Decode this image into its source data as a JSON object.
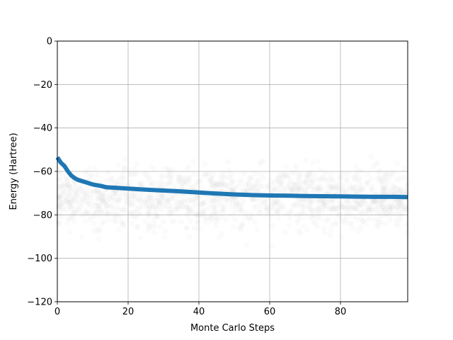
{
  "chart_data": {
    "type": "line",
    "title": "",
    "xlabel": "Monte Carlo Steps",
    "ylabel": "Energy (Hartree)",
    "xlim": [
      0,
      99
    ],
    "ylim": [
      -120,
      0
    ],
    "grid": true,
    "x_ticks": [
      0,
      20,
      40,
      60,
      80
    ],
    "x_tick_labels": [
      "0",
      "20",
      "40",
      "60",
      "80"
    ],
    "y_ticks": [
      0,
      -20,
      -40,
      -60,
      -80,
      -100,
      -120
    ],
    "y_tick_labels": [
      "0",
      "−20",
      "−40",
      "−60",
      "−80",
      "−100",
      "−120"
    ],
    "line_color": "#1f77b4",
    "scatter_color": "#cccccc",
    "series": [
      {
        "x": [
          0,
          1,
          2,
          3,
          4,
          5,
          6,
          8,
          10,
          12,
          14,
          16,
          20,
          25,
          30,
          35,
          40,
          45,
          50,
          55,
          60,
          65,
          70,
          75,
          80,
          85,
          90,
          95,
          99
        ],
        "values": [
          -53.5,
          -56,
          -57.5,
          -60,
          -62,
          -63.2,
          -64,
          -65,
          -66,
          -66.6,
          -67.3,
          -67.5,
          -67.9,
          -68.4,
          -68.8,
          -69.2,
          -69.7,
          -70.2,
          -70.6,
          -70.9,
          -71.1,
          -71.2,
          -71.3,
          -71.4,
          -71.5,
          -71.6,
          -71.7,
          -71.7,
          -71.8
        ]
      }
    ],
    "scatter_note_density": "many faint gray walker samples around -20 to -120"
  }
}
